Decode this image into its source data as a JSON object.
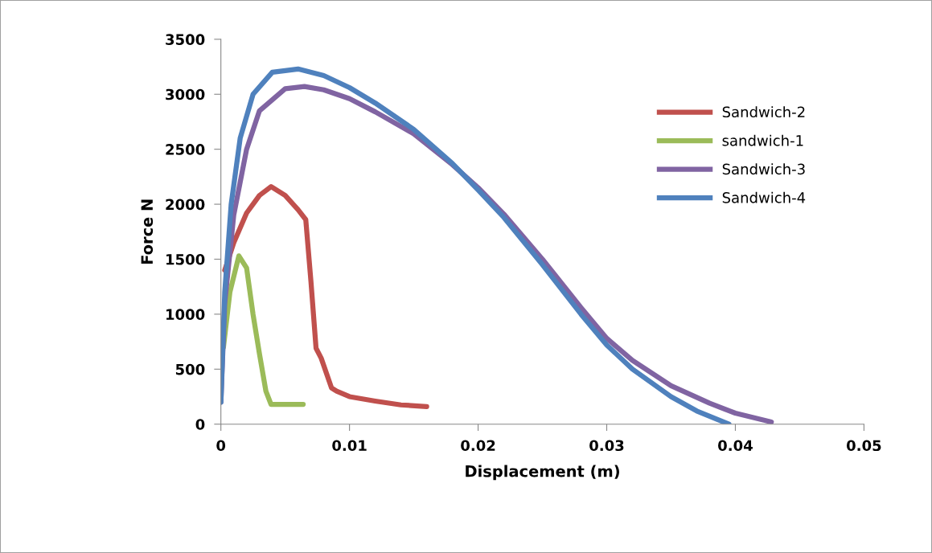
{
  "chart_data": {
    "type": "line",
    "xlabel": "Displacement (m)",
    "ylabel": "Force N",
    "xlim": [
      0,
      0.05
    ],
    "xticks": [
      0,
      0.01,
      0.02,
      0.03,
      0.04,
      0.05
    ],
    "ylim": [
      0,
      3500
    ],
    "yticks": [
      0,
      500,
      1000,
      1500,
      2000,
      2500,
      3000,
      3500
    ],
    "grid": false,
    "legend": "top right",
    "marker": "none",
    "line_style": "solid",
    "series": [
      {
        "name": "Sandwich-2",
        "color": "#c0504d",
        "x": [
          0.0003,
          0.001,
          0.002,
          0.003,
          0.0039,
          0.005,
          0.006,
          0.0066,
          0.007,
          0.0074,
          0.0078,
          0.0086,
          0.009,
          0.01,
          0.012,
          0.014,
          0.016
        ],
        "values": [
          1400,
          1650,
          1920,
          2080,
          2160,
          2080,
          1950,
          1860,
          1300,
          690,
          600,
          330,
          300,
          250,
          210,
          175,
          160
        ]
      },
      {
        "name": "sandwich-1",
        "color": "#9bbb59",
        "x": [
          0.0002,
          0.0007,
          0.0014,
          0.002,
          0.0025,
          0.003,
          0.0035,
          0.0039,
          0.0064
        ],
        "values": [
          700,
          1200,
          1530,
          1420,
          1000,
          640,
          300,
          180,
          180
        ]
      },
      {
        "name": "Sandwich-3",
        "color": "#8064a2",
        "x": [
          0,
          0.0003,
          0.001,
          0.002,
          0.003,
          0.005,
          0.0065,
          0.008,
          0.01,
          0.012,
          0.015,
          0.018,
          0.02,
          0.022,
          0.025,
          0.028,
          0.03,
          0.032,
          0.035,
          0.038,
          0.04,
          0.0428
        ],
        "values": [
          200,
          1100,
          1900,
          2500,
          2850,
          3050,
          3070,
          3040,
          2960,
          2840,
          2640,
          2360,
          2150,
          1910,
          1500,
          1060,
          780,
          580,
          350,
          190,
          100,
          20
        ]
      },
      {
        "name": "Sandwich-4",
        "color": "#4f81bd",
        "x": [
          0,
          0.0003,
          0.0008,
          0.0015,
          0.0025,
          0.004,
          0.006,
          0.008,
          0.01,
          0.012,
          0.015,
          0.018,
          0.02,
          0.022,
          0.025,
          0.028,
          0.03,
          0.032,
          0.035,
          0.037,
          0.0395
        ],
        "values": [
          200,
          1200,
          2000,
          2600,
          3000,
          3200,
          3230,
          3170,
          3060,
          2920,
          2680,
          2370,
          2130,
          1880,
          1450,
          1000,
          720,
          500,
          250,
          120,
          0
        ]
      }
    ]
  }
}
